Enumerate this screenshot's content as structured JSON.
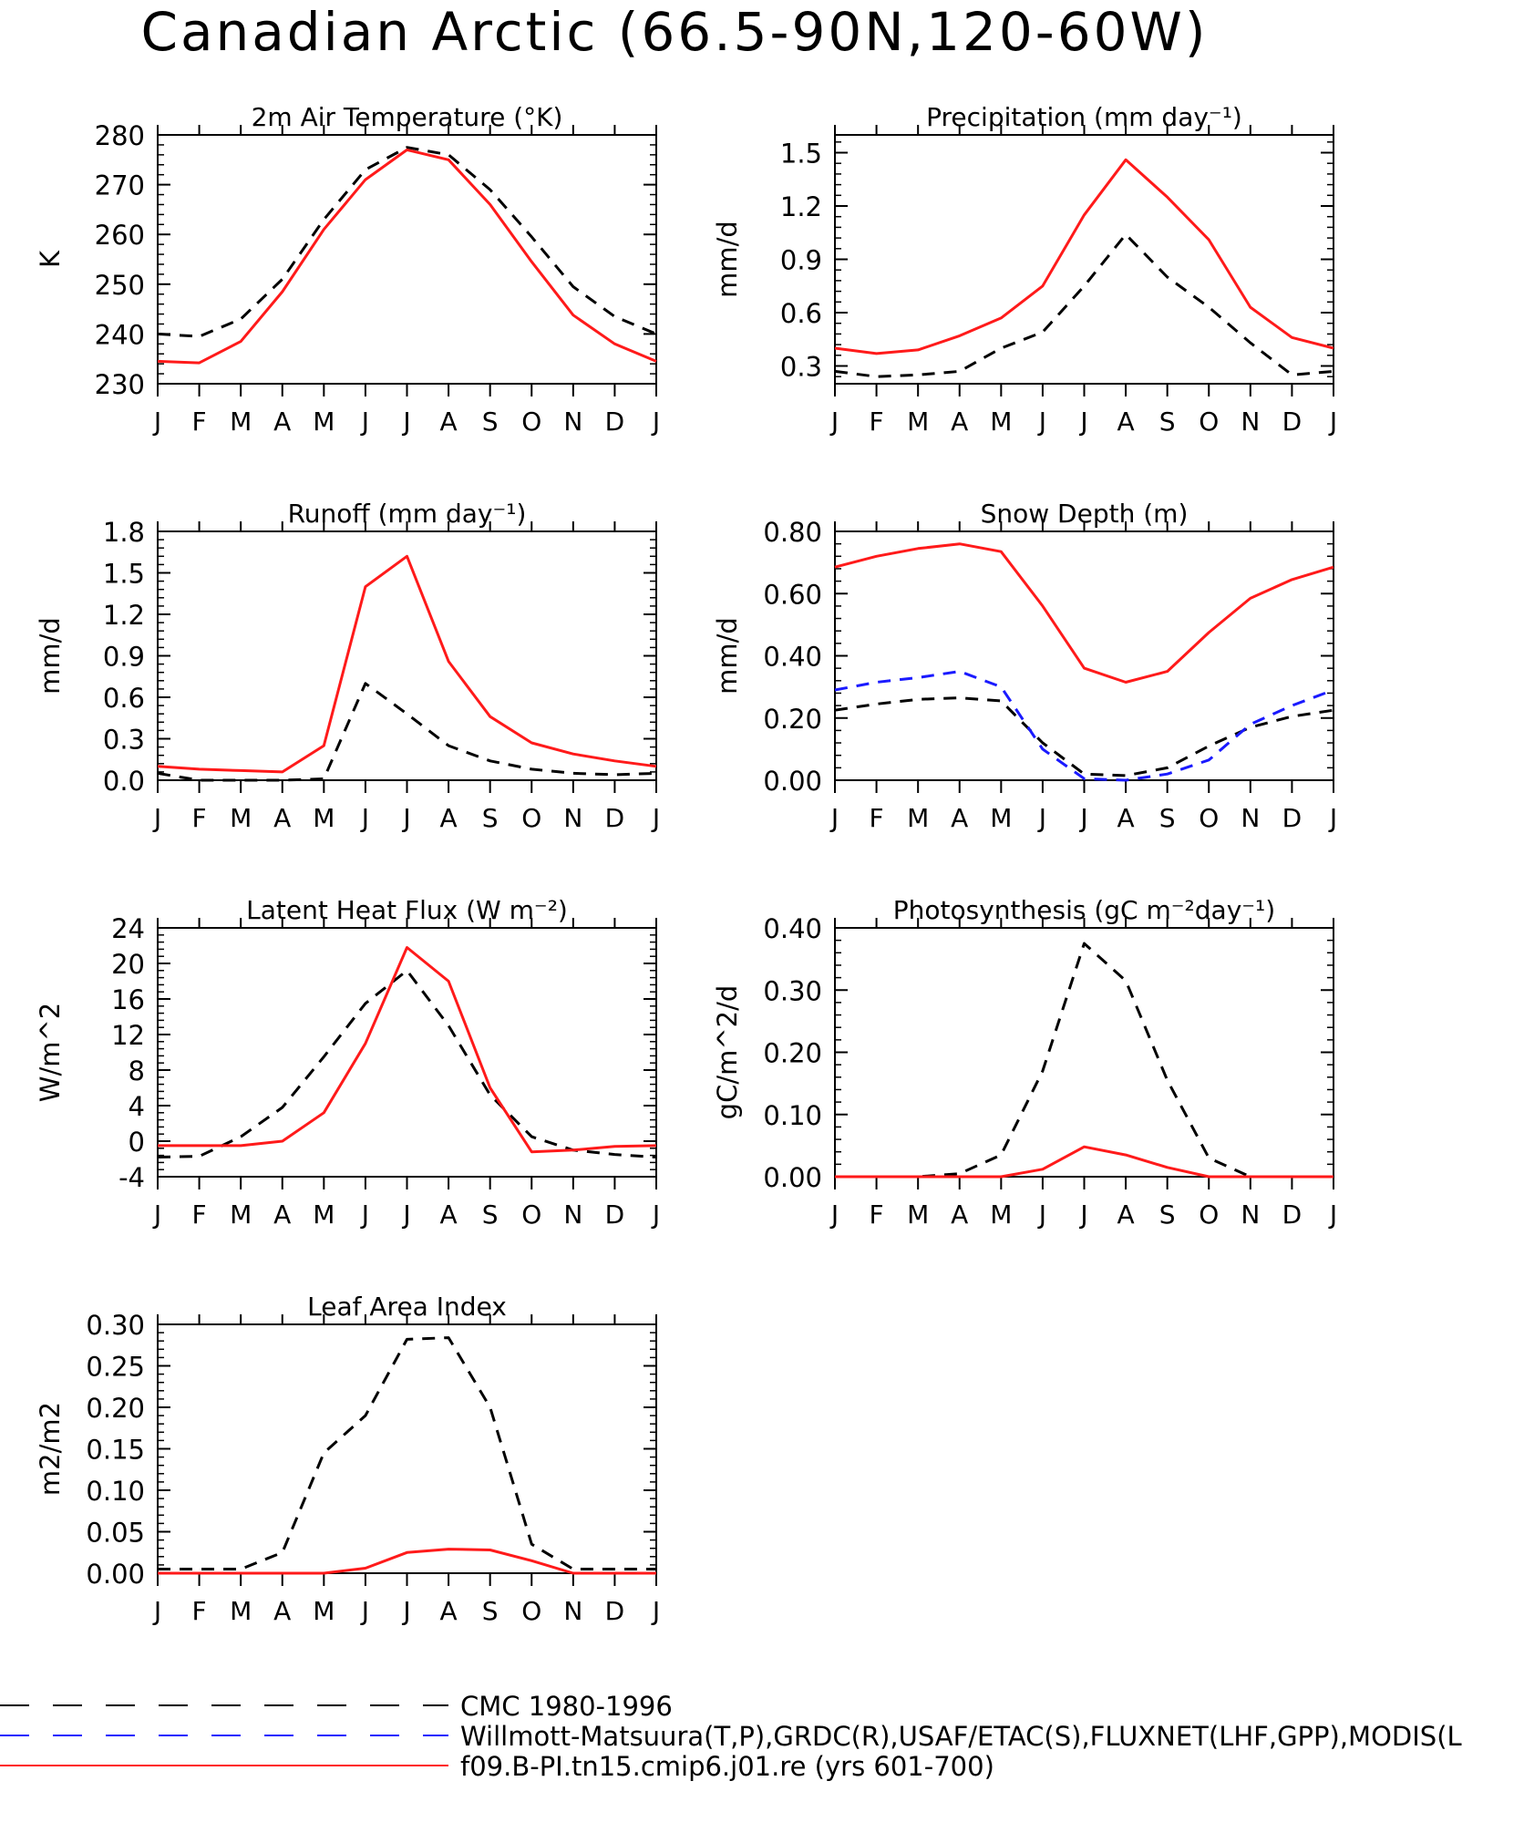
{
  "page": {
    "title": "Canadian Arctic (66.5-90N,120-60W)"
  },
  "months": [
    "J",
    "F",
    "M",
    "A",
    "M",
    "J",
    "J",
    "A",
    "S",
    "O",
    "N",
    "D",
    "J"
  ],
  "colors": {
    "cmc": "#000000",
    "obs": "#1a1aff",
    "model": "#ff1a1a"
  },
  "legend": [
    {
      "key": "cmc",
      "label": "CMC 1980-1996",
      "style": "dashed",
      "color": "#000000"
    },
    {
      "key": "obs",
      "label": "Willmott-Matsuura(T,P),GRDC(R),USAF/ETAC(S),FLUXNET(LHF,GPP),MODIS(L",
      "style": "dashed",
      "color": "#1a1aff"
    },
    {
      "key": "model",
      "label": "f09.B-PI.tn15.cmip6.j01.re (yrs 601-700)",
      "style": "solid",
      "color": "#ff1a1a"
    }
  ],
  "chart_data": [
    {
      "type": "line",
      "title": "2m Air Temperature (°K)",
      "ylabel": "K",
      "ylim": [
        230,
        280
      ],
      "yticks": [
        230,
        240,
        250,
        260,
        270,
        280
      ],
      "ytick_labels": [
        "230",
        "240",
        "250",
        "260",
        "270",
        "280"
      ],
      "x": [
        "J",
        "F",
        "M",
        "A",
        "M",
        "J",
        "J",
        "A",
        "S",
        "O",
        "N",
        "D",
        "J"
      ],
      "series": [
        {
          "key": "cmc",
          "style": "dashed",
          "values": [
            240,
            239.5,
            243,
            251,
            263,
            273,
            277.5,
            276,
            269,
            259.5,
            249.5,
            243.5,
            240
          ]
        },
        {
          "key": "model",
          "style": "solid",
          "values": [
            234.5,
            234.2,
            238.5,
            248.5,
            261,
            271,
            277,
            275,
            266,
            254.5,
            243.8,
            238,
            234.5
          ]
        }
      ]
    },
    {
      "type": "line",
      "title": "Precipitation (mm day⁻¹)",
      "ylabel": "mm/d",
      "ylim": [
        0.2,
        1.6
      ],
      "yticks": [
        0.3,
        0.6,
        0.9,
        1.2,
        1.5
      ],
      "ytick_labels": [
        "0.3",
        "0.6",
        "0.9",
        "1.2",
        "1.5"
      ],
      "x": [
        "J",
        "F",
        "M",
        "A",
        "M",
        "J",
        "J",
        "A",
        "S",
        "O",
        "N",
        "D",
        "J"
      ],
      "series": [
        {
          "key": "cmc",
          "style": "dashed",
          "values": [
            0.27,
            0.24,
            0.25,
            0.27,
            0.4,
            0.49,
            0.75,
            1.04,
            0.8,
            0.63,
            0.43,
            0.25,
            0.27
          ]
        },
        {
          "key": "model",
          "style": "solid",
          "values": [
            0.4,
            0.37,
            0.39,
            0.47,
            0.57,
            0.75,
            1.15,
            1.46,
            1.25,
            1.01,
            0.63,
            0.46,
            0.4
          ]
        }
      ]
    },
    {
      "type": "line",
      "title": "Runoff (mm day⁻¹)",
      "ylabel": "mm/d",
      "ylim": [
        0,
        1.8
      ],
      "yticks": [
        0,
        0.3,
        0.6,
        0.9,
        1.2,
        1.5,
        1.8
      ],
      "ytick_labels": [
        "0.0",
        "0.3",
        "0.6",
        "0.9",
        "1.2",
        "1.5",
        "1.8"
      ],
      "x": [
        "J",
        "F",
        "M",
        "A",
        "M",
        "J",
        "J",
        "A",
        "S",
        "O",
        "N",
        "D",
        "J"
      ],
      "series": [
        {
          "key": "cmc",
          "style": "dashed",
          "values": [
            0.05,
            0.0,
            0.0,
            0.0,
            0.01,
            0.7,
            0.48,
            0.25,
            0.14,
            0.08,
            0.05,
            0.04,
            0.05
          ]
        },
        {
          "key": "model",
          "style": "solid",
          "values": [
            0.1,
            0.08,
            0.07,
            0.06,
            0.25,
            1.4,
            1.62,
            0.86,
            0.46,
            0.27,
            0.19,
            0.14,
            0.1
          ]
        }
      ]
    },
    {
      "type": "line",
      "title": "Snow Depth (m)",
      "ylabel": "mm/d",
      "ylim": [
        0,
        0.8
      ],
      "yticks": [
        0,
        0.2,
        0.4,
        0.6,
        0.8
      ],
      "ytick_labels": [
        "0.00",
        "0.20",
        "0.40",
        "0.60",
        "0.80"
      ],
      "x": [
        "J",
        "F",
        "M",
        "A",
        "M",
        "J",
        "J",
        "A",
        "S",
        "O",
        "N",
        "D",
        "J"
      ],
      "series": [
        {
          "key": "cmc",
          "style": "dashed",
          "values": [
            0.225,
            0.245,
            0.26,
            0.265,
            0.255,
            0.12,
            0.02,
            0.015,
            0.04,
            0.11,
            0.17,
            0.205,
            0.225
          ]
        },
        {
          "key": "obs",
          "style": "dashed",
          "values": [
            0.29,
            0.315,
            0.33,
            0.35,
            0.3,
            0.1,
            0.005,
            0.0,
            0.02,
            0.065,
            0.18,
            0.24,
            0.29
          ]
        },
        {
          "key": "model",
          "style": "solid",
          "values": [
            0.685,
            0.72,
            0.745,
            0.76,
            0.735,
            0.56,
            0.36,
            0.315,
            0.35,
            0.475,
            0.585,
            0.645,
            0.685
          ]
        }
      ]
    },
    {
      "type": "line",
      "title": "Latent Heat Flux (W m⁻²)",
      "ylabel": "W/m^2",
      "ylim": [
        -4,
        24
      ],
      "yticks": [
        -4,
        0,
        4,
        8,
        12,
        16,
        20,
        24
      ],
      "ytick_labels": [
        "-4",
        "0",
        "4",
        "8",
        "12",
        "16",
        "20",
        "24"
      ],
      "x": [
        "J",
        "F",
        "M",
        "A",
        "M",
        "J",
        "J",
        "A",
        "S",
        "O",
        "N",
        "D",
        "J"
      ],
      "series": [
        {
          "key": "cmc",
          "style": "dashed",
          "values": [
            -1.8,
            -1.7,
            0.5,
            3.8,
            9.5,
            15.5,
            19.2,
            13,
            5.2,
            0.5,
            -1.0,
            -1.5,
            -1.8
          ]
        },
        {
          "key": "model",
          "style": "solid",
          "values": [
            -0.5,
            -0.5,
            -0.5,
            0.0,
            3.2,
            11,
            21.8,
            18,
            6.0,
            -1.2,
            -1.0,
            -0.6,
            -0.5
          ]
        }
      ]
    },
    {
      "type": "line",
      "title": "Photosynthesis (gC m⁻²day⁻¹)",
      "ylabel": "gC/m^2/d",
      "ylim": [
        0,
        0.4
      ],
      "yticks": [
        0,
        0.1,
        0.2,
        0.3,
        0.4
      ],
      "ytick_labels": [
        "0.00",
        "0.10",
        "0.20",
        "0.30",
        "0.40"
      ],
      "x": [
        "J",
        "F",
        "M",
        "A",
        "M",
        "J",
        "J",
        "A",
        "S",
        "O",
        "N",
        "D",
        "J"
      ],
      "series": [
        {
          "key": "cmc",
          "style": "dashed",
          "values": [
            0.0,
            0.0,
            0.0,
            0.005,
            0.035,
            0.17,
            0.375,
            0.315,
            0.155,
            0.03,
            0.0,
            0.0,
            0.0
          ]
        },
        {
          "key": "model",
          "style": "solid",
          "values": [
            0.0,
            0.0,
            0.0,
            0.0,
            0.0,
            0.012,
            0.048,
            0.035,
            0.015,
            0.0,
            0.0,
            0.0,
            0.0
          ]
        }
      ]
    },
    {
      "type": "line",
      "title": "Leaf Area Index",
      "ylabel": "m2/m2",
      "ylim": [
        0,
        0.3
      ],
      "yticks": [
        0,
        0.05,
        0.1,
        0.15,
        0.2,
        0.25,
        0.3
      ],
      "ytick_labels": [
        "0.00",
        "0.05",
        "0.10",
        "0.15",
        "0.20",
        "0.25",
        "0.30"
      ],
      "x": [
        "J",
        "F",
        "M",
        "A",
        "M",
        "J",
        "J",
        "A",
        "S",
        "O",
        "N",
        "D",
        "J"
      ],
      "series": [
        {
          "key": "cmc",
          "style": "dashed",
          "values": [
            0.005,
            0.005,
            0.005,
            0.025,
            0.145,
            0.19,
            0.282,
            0.284,
            0.2,
            0.035,
            0.005,
            0.005,
            0.005
          ]
        },
        {
          "key": "model",
          "style": "solid",
          "values": [
            0.0,
            0.0,
            0.0,
            0.0,
            0.0,
            0.006,
            0.025,
            0.029,
            0.028,
            0.015,
            0.0,
            0.0,
            0.0
          ]
        }
      ]
    }
  ]
}
